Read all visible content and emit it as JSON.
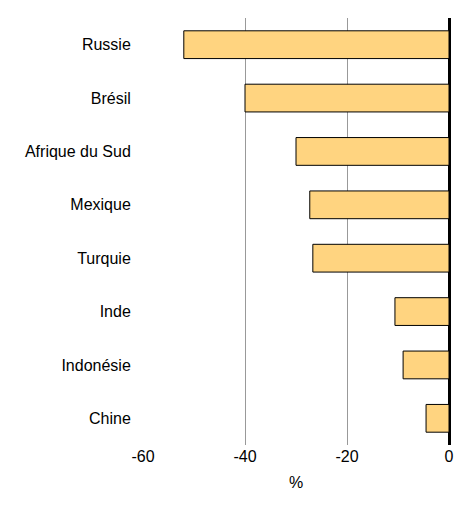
{
  "chart_data": {
    "type": "bar",
    "orientation": "horizontal",
    "categories": [
      "Russie",
      "Brésil",
      "Afrique du Sud",
      "Mexique",
      "Turquie",
      "Inde",
      "Indonésie",
      "Chine"
    ],
    "values": [
      -52,
      -40,
      -30,
      -27.3,
      -26.7,
      -10.6,
      -9,
      -4.5
    ],
    "color": "#ffd480",
    "xlabel": "%",
    "xlim": [
      -60,
      0
    ],
    "xticks": [
      -60,
      -40,
      -20,
      0
    ],
    "grid": true
  }
}
